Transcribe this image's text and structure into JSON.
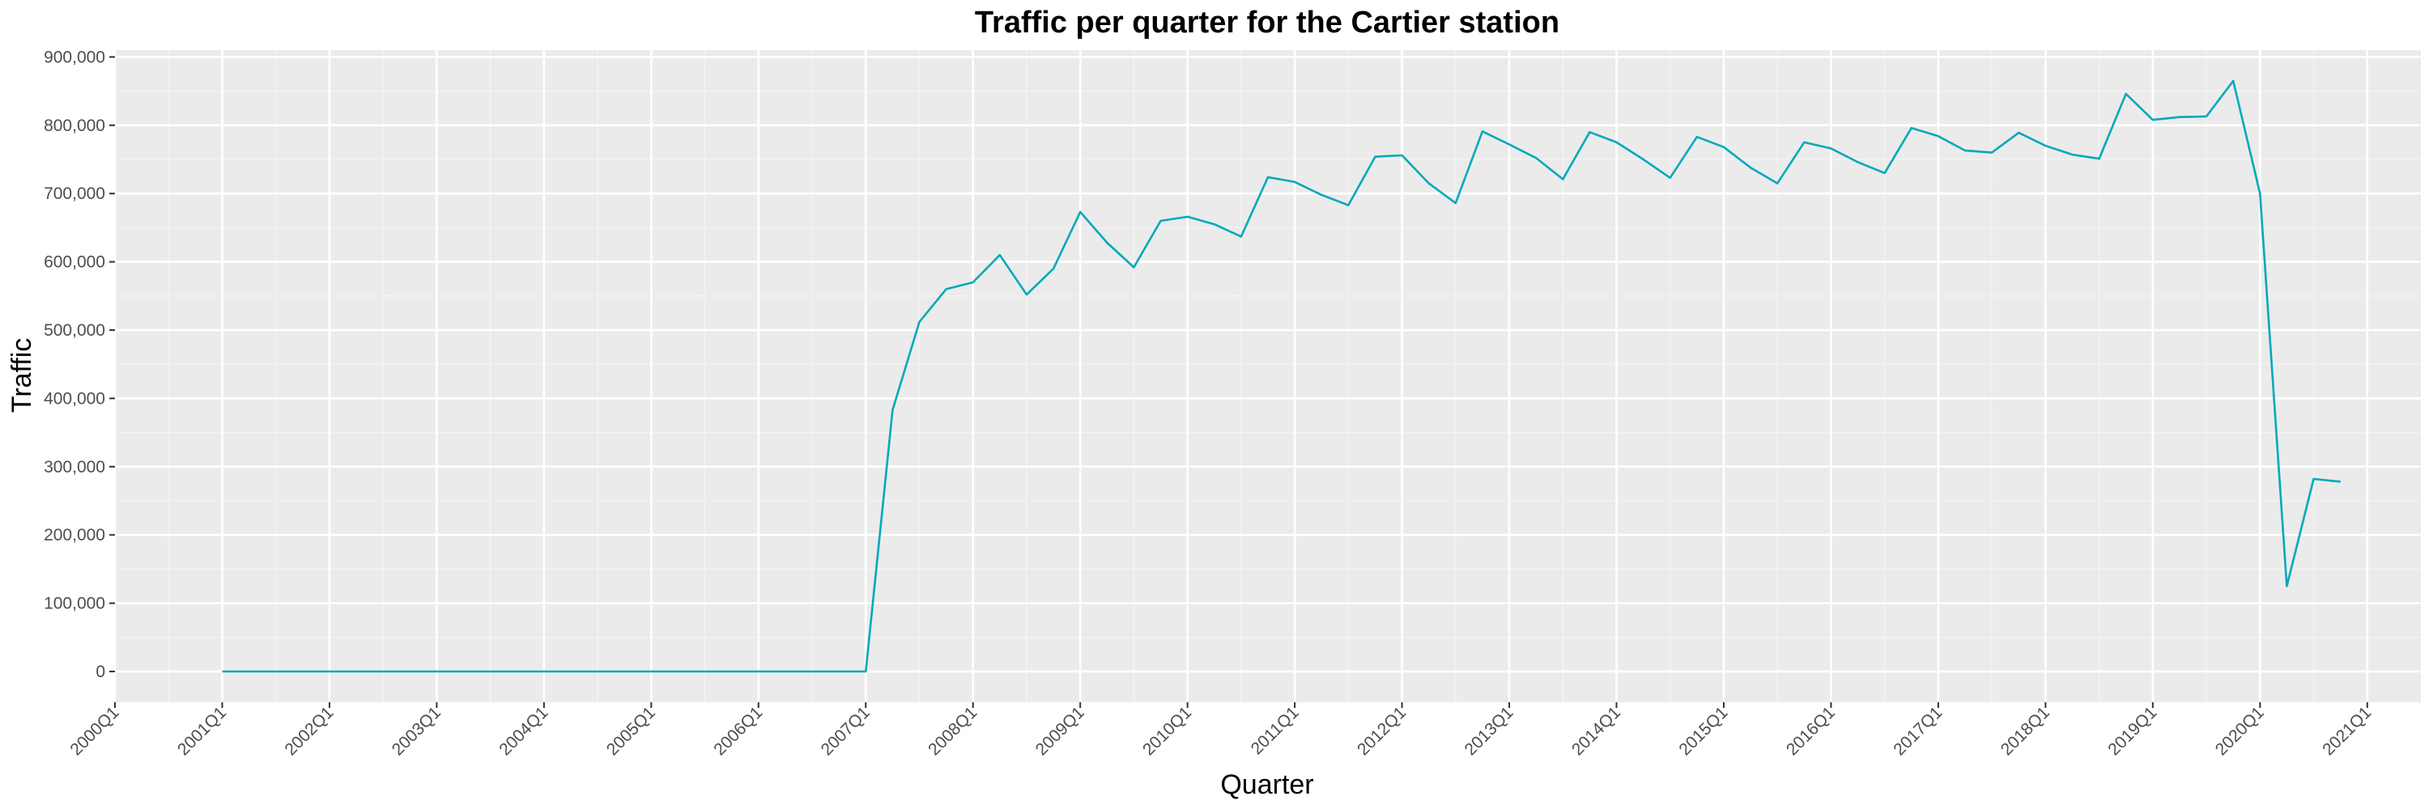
{
  "chart_data": {
    "type": "line",
    "title": "Traffic per quarter for the Cartier station",
    "xlabel": "Quarter",
    "ylabel": "Traffic",
    "x_ticks": [
      "2000Q1",
      "2001Q1",
      "2002Q1",
      "2003Q1",
      "2004Q1",
      "2005Q1",
      "2006Q1",
      "2007Q1",
      "2008Q1",
      "2009Q1",
      "2010Q1",
      "2011Q1",
      "2012Q1",
      "2013Q1",
      "2014Q1",
      "2015Q1",
      "2016Q1",
      "2017Q1",
      "2018Q1",
      "2019Q1",
      "2020Q1",
      "2021Q1"
    ],
    "y_ticks": [
      "0",
      "100,000",
      "200,000",
      "300,000",
      "400,000",
      "500,000",
      "600,000",
      "700,000",
      "800,000",
      "900,000"
    ],
    "ylim": [
      -45000,
      910000
    ],
    "xlim": [
      "2000Q1",
      "2021Q3"
    ],
    "grid": true,
    "panel_background": "#ebebeb",
    "line_color": "#00a9bb",
    "series": [
      {
        "x": [
          "2001Q1",
          "2001Q2",
          "2001Q3",
          "2001Q4",
          "2002Q1",
          "2002Q2",
          "2002Q3",
          "2002Q4",
          "2003Q1",
          "2003Q2",
          "2003Q3",
          "2003Q4",
          "2004Q1",
          "2004Q2",
          "2004Q3",
          "2004Q4",
          "2005Q1",
          "2005Q2",
          "2005Q3",
          "2005Q4",
          "2006Q1",
          "2006Q2",
          "2006Q3",
          "2006Q4",
          "2007Q1",
          "2007Q2",
          "2007Q3",
          "2007Q4",
          "2008Q1",
          "2008Q2",
          "2008Q3",
          "2008Q4",
          "2009Q1",
          "2009Q2",
          "2009Q3",
          "2009Q4",
          "2010Q1",
          "2010Q2",
          "2010Q3",
          "2010Q4",
          "2011Q1",
          "2011Q2",
          "2011Q3",
          "2011Q4",
          "2012Q1",
          "2012Q2",
          "2012Q3",
          "2012Q4",
          "2013Q1",
          "2013Q2",
          "2013Q3",
          "2013Q4",
          "2014Q1",
          "2014Q2",
          "2014Q3",
          "2014Q4",
          "2015Q1",
          "2015Q2",
          "2015Q3",
          "2015Q4",
          "2016Q1",
          "2016Q2",
          "2016Q3",
          "2016Q4",
          "2017Q1",
          "2017Q2",
          "2017Q3",
          "2017Q4",
          "2018Q1",
          "2018Q2",
          "2018Q3",
          "2018Q4",
          "2019Q1",
          "2019Q2",
          "2019Q3",
          "2019Q4",
          "2020Q1",
          "2020Q2",
          "2020Q3",
          "2020Q4"
        ],
        "values": [
          0,
          0,
          0,
          0,
          0,
          0,
          0,
          0,
          0,
          0,
          0,
          0,
          0,
          0,
          0,
          0,
          0,
          0,
          0,
          0,
          0,
          0,
          0,
          0,
          0,
          383000,
          512000,
          560000,
          570000,
          610000,
          552000,
          590000,
          673000,
          628000,
          592000,
          660000,
          666000,
          655000,
          637000,
          724000,
          717000,
          698000,
          683000,
          754000,
          756000,
          715000,
          686000,
          791000,
          772000,
          752000,
          721000,
          790000,
          775000,
          750000,
          723000,
          783000,
          768000,
          738000,
          715000,
          775000,
          766000,
          746000,
          730000,
          796000,
          784000,
          763000,
          760000,
          789000,
          770000,
          757000,
          751000,
          846000,
          808000,
          812000,
          813000,
          865000,
          700000,
          125000,
          282000,
          278000
        ]
      }
    ]
  }
}
